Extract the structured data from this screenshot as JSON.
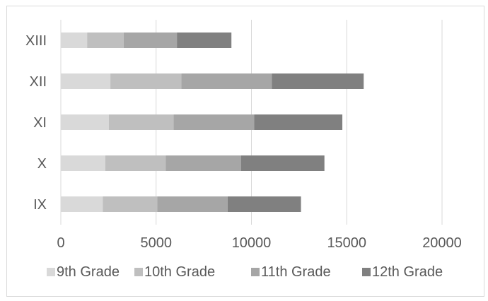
{
  "chart_data": {
    "type": "bar",
    "orientation": "horizontal",
    "stacked": true,
    "categories": [
      "IX",
      "X",
      "XI",
      "XII",
      "XIII"
    ],
    "series": [
      {
        "name": "9th Grade",
        "values": [
          2200,
          2330,
          2520,
          2600,
          1380
        ],
        "color": "#d9d9d9"
      },
      {
        "name": "10th Grade",
        "values": [
          2860,
          3170,
          3400,
          3720,
          1920
        ],
        "color": "#bfbfbf"
      },
      {
        "name": "11th Grade",
        "values": [
          3690,
          3950,
          4220,
          4750,
          2790
        ],
        "color": "#a6a6a6"
      },
      {
        "name": "12th Grade",
        "values": [
          3850,
          4380,
          4630,
          4820,
          2860
        ],
        "color": "#808080"
      }
    ],
    "xlim": [
      0,
      20000
    ],
    "xticks": [
      "0",
      "5000",
      "10000",
      "15000",
      "20000"
    ],
    "grid": "vertical",
    "legend_position": "bottom"
  }
}
